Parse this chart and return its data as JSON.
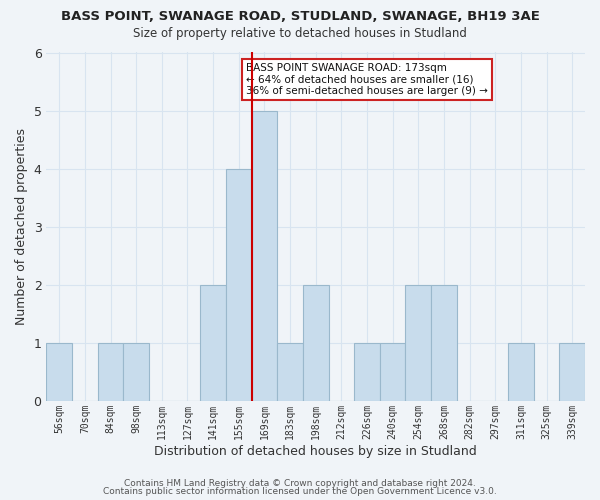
{
  "title": "BASS POINT, SWANAGE ROAD, STUDLAND, SWANAGE, BH19 3AE",
  "subtitle": "Size of property relative to detached houses in Studland",
  "xlabel": "Distribution of detached houses by size in Studland",
  "ylabel": "Number of detached properties",
  "bar_color": "#c8dcec",
  "bar_edge_color": "#9ab8cc",
  "categories": [
    "56sqm",
    "70sqm",
    "84sqm",
    "98sqm",
    "113sqm",
    "127sqm",
    "141sqm",
    "155sqm",
    "169sqm",
    "183sqm",
    "198sqm",
    "212sqm",
    "226sqm",
    "240sqm",
    "254sqm",
    "268sqm",
    "282sqm",
    "297sqm",
    "311sqm",
    "325sqm",
    "339sqm"
  ],
  "values": [
    1,
    0,
    1,
    1,
    0,
    0,
    2,
    4,
    5,
    1,
    2,
    0,
    1,
    1,
    2,
    2,
    0,
    0,
    1,
    0,
    1
  ],
  "ref_line_index": 8,
  "reference_line_color": "#cc0000",
  "ylim": [
    0,
    6
  ],
  "yticks": [
    0,
    1,
    2,
    3,
    4,
    5,
    6
  ],
  "annotation_box_text": "BASS POINT SWANAGE ROAD: 173sqm\n← 64% of detached houses are smaller (16)\n36% of semi-detached houses are larger (9) →",
  "footer_line1": "Contains HM Land Registry data © Crown copyright and database right 2024.",
  "footer_line2": "Contains public sector information licensed under the Open Government Licence v3.0.",
  "background_color": "#f0f4f8",
  "grid_color": "#d8e4f0",
  "fig_width": 6.0,
  "fig_height": 5.0
}
